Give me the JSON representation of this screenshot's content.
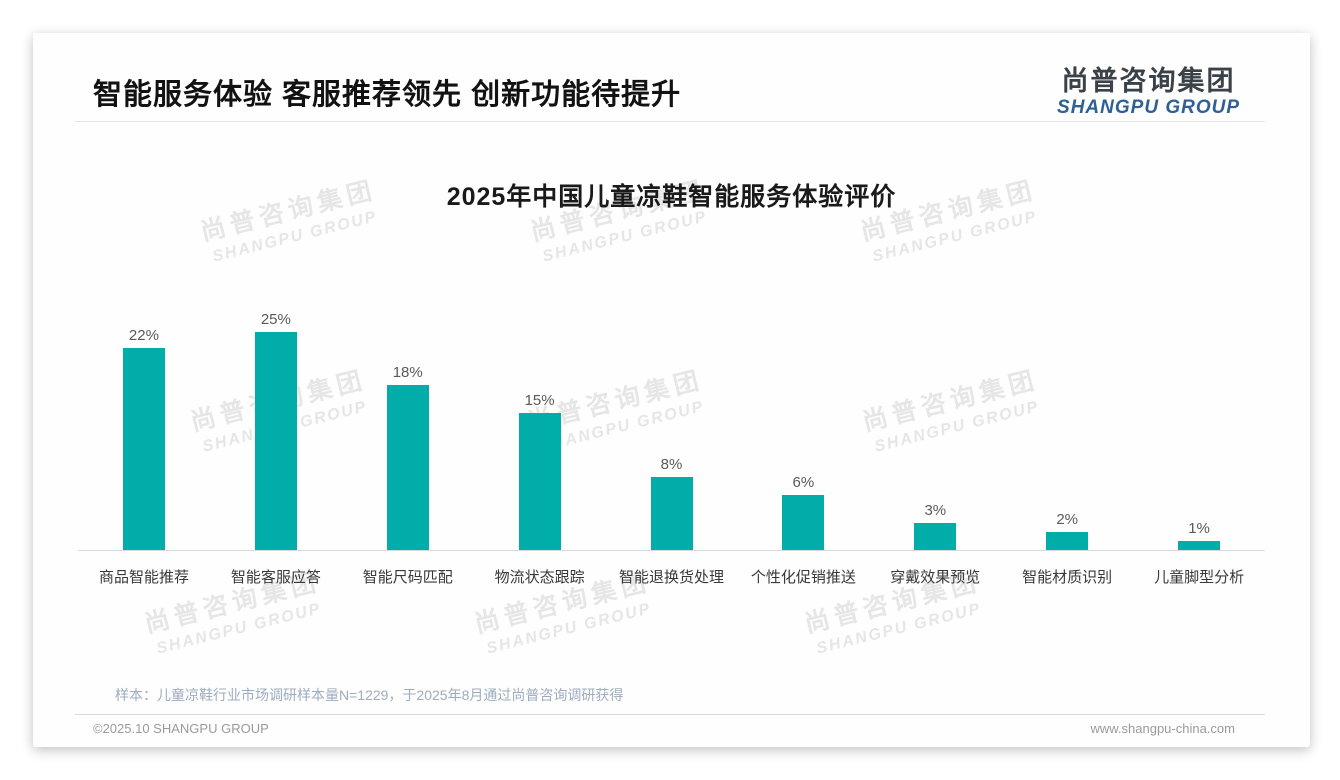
{
  "page": {
    "header": {
      "title": "智能服务体验 客服推荐领先 创新功能待提升"
    },
    "logo": {
      "cn": "尚普咨询集团",
      "en": "SHANGPU GROUP"
    },
    "watermark": {
      "cn": "尚普咨询集团",
      "en": "SHANGPU GROUP"
    },
    "footnote": "样本：儿童凉鞋行业市场调研样本量N=1229，于2025年8月通过尚普咨询调研获得",
    "footer": {
      "left": "©2025.10 SHANGPU GROUP",
      "right": "www.shangpu-china.com"
    }
  },
  "chart_data": {
    "type": "bar",
    "title": "2025年中国儿童凉鞋智能服务体验评价",
    "categories": [
      "商品智能推荐",
      "智能客服应答",
      "智能尺码匹配",
      "物流状态跟踪",
      "智能退换货处理",
      "个性化促销推送",
      "穿戴效果预览",
      "智能材质识别",
      "儿童脚型分析"
    ],
    "values": [
      22,
      25,
      18,
      15,
      8,
      6,
      3,
      2,
      1
    ],
    "value_labels": [
      "22%",
      "25%",
      "18%",
      "15%",
      "8%",
      "6%",
      "3%",
      "2%",
      "1%"
    ],
    "unit": "%",
    "bar_color": "#00ADA8",
    "axis_color": "#D9D9D9",
    "xlabel": "",
    "ylabel": "",
    "ylim": [
      0,
      27
    ],
    "grid": false,
    "legend": false
  }
}
